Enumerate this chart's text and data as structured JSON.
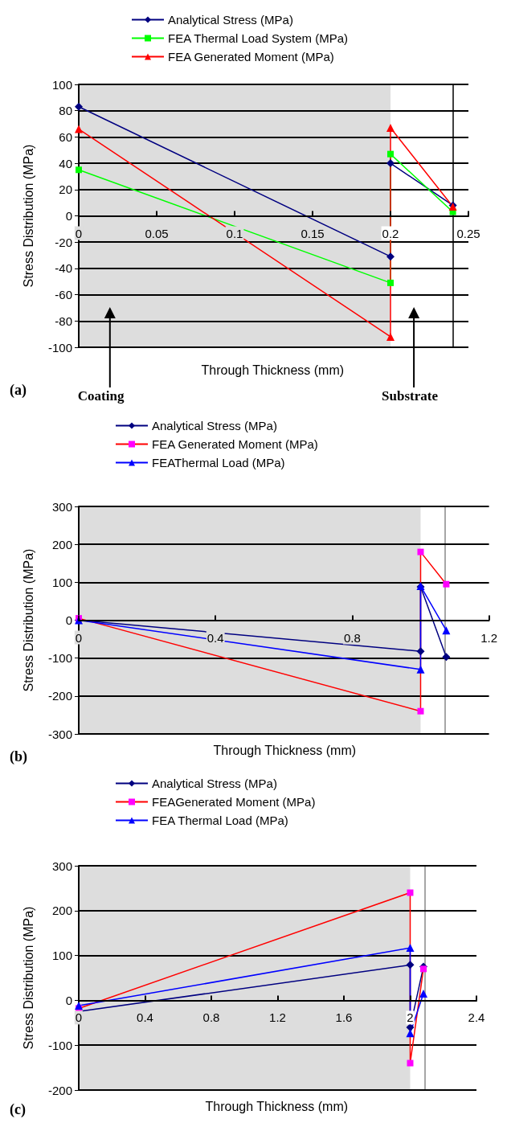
{
  "chart_data": [
    {
      "type": "line",
      "xlabel": "Through Thickness (mm)",
      "ylabel": "Stress Distribution (MPa)",
      "xlim": [
        0,
        0.25
      ],
      "xticks": [
        0,
        0.05,
        0.1,
        0.15,
        0.2,
        0.25
      ],
      "ylim": [
        -100,
        100
      ],
      "yticks": [
        -100,
        -80,
        -60,
        -40,
        -20,
        0,
        20,
        40,
        60,
        80,
        100
      ],
      "grid": "y",
      "legend": "top",
      "series": [
        {
          "name": "Analytical Stress (MPa)",
          "color": "#000080",
          "marker": "diamond",
          "x": [
            0,
            0.2,
            0.2,
            0.24
          ],
          "values": [
            83,
            -31,
            40,
            8
          ]
        },
        {
          "name": "FEA Thermal Load System (MPa)",
          "color": "#00ff00",
          "marker": "square",
          "x": [
            0,
            0.2,
            0.2,
            0.24
          ],
          "values": [
            35,
            -51,
            47,
            3
          ]
        },
        {
          "name": "FEA Generated Moment (MPa)",
          "color": "#ff0000",
          "marker": "triangle",
          "x": [
            0,
            0.2,
            0.2,
            0.24
          ],
          "values": [
            66,
            -92,
            67,
            7
          ]
        }
      ],
      "bands": [
        {
          "axis": "x",
          "from": 0,
          "to": 0.2,
          "color": "#dddddd"
        }
      ],
      "ref_lines": [
        {
          "axis": "x",
          "value": 0.24,
          "color": "#000000"
        }
      ],
      "annotations": [
        "(a)",
        "Coating",
        "Substrate"
      ]
    },
    {
      "type": "line",
      "xlabel": "Through Thickness (mm)",
      "ylabel": "Stress Distribution (MPa)",
      "xlim": [
        0,
        1.2
      ],
      "xticks": [
        0,
        0.4,
        0.8,
        1.2
      ],
      "ylim": [
        -300,
        300
      ],
      "yticks": [
        -300,
        -200,
        -100,
        0,
        100,
        200,
        300
      ],
      "grid": "y",
      "legend": "top",
      "series": [
        {
          "name": "Analytical Stress (MPa)",
          "color": "#000080",
          "marker": "diamond",
          "x": [
            0,
            1.0,
            1.0,
            1.075
          ],
          "values": [
            0,
            -82,
            88,
            -97
          ]
        },
        {
          "name": "FEA Generated Moment (MPa)",
          "color": "#ff0000",
          "colors": [
            "#ff00ff",
            "#ff00ff",
            "#ff00ff",
            "#ff00ff"
          ],
          "marker": "square",
          "x": [
            0,
            1.0,
            1.0,
            1.075
          ],
          "values": [
            5,
            -240,
            180,
            95
          ]
        },
        {
          "name": "FEAThermal Load (MPa)",
          "color": "#0000ff",
          "marker": "triangle",
          "x": [
            0,
            1.0,
            1.0,
            1.075
          ],
          "values": [
            0,
            -130,
            90,
            -27
          ]
        }
      ],
      "bands": [
        {
          "axis": "x",
          "from": 0,
          "to": 1.0,
          "color": "#dddddd"
        }
      ],
      "ref_lines": [
        {
          "axis": "x",
          "value": 1.07,
          "color": "#888888"
        }
      ],
      "annotations": [
        "(b)"
      ]
    },
    {
      "type": "line",
      "xlabel": "Through Thickness (mm)",
      "ylabel": "Stress Distribution (MPa)",
      "xlim": [
        0,
        2.4
      ],
      "xticks": [
        0,
        0.4,
        0.8,
        1.2,
        1.6,
        2,
        2.4
      ],
      "ylim": [
        -200,
        300
      ],
      "yticks": [
        -200,
        -100,
        0,
        100,
        200,
        300
      ],
      "grid": "y",
      "legend": "top",
      "series": [
        {
          "name": "Analytical Stress (MPa)",
          "color": "#000080",
          "marker": "diamond",
          "x": [
            0,
            2.0,
            2.0,
            2.08
          ],
          "values": [
            -25,
            79,
            -60,
            75
          ]
        },
        {
          "name": "FEAGenerated Moment (MPa)",
          "color": "#ff0000",
          "colors": [
            "#ff00ff",
            "#ff00ff",
            "#ff00ff",
            "#ff00ff"
          ],
          "marker": "square",
          "x": [
            0,
            2.0,
            2.0,
            2.08
          ],
          "values": [
            -18,
            240,
            -140,
            70
          ]
        },
        {
          "name": "FEA Thermal Load (MPa)",
          "color": "#0000ff",
          "marker": "triangle",
          "x": [
            0,
            2.0,
            2.0,
            2.08
          ],
          "values": [
            -12,
            117,
            -73,
            15
          ]
        }
      ],
      "bands": [
        {
          "axis": "x",
          "from": 0,
          "to": 2.0,
          "color": "#dddddd"
        }
      ],
      "ref_lines": [
        {
          "axis": "x",
          "value": 2.09,
          "color": "#888888"
        }
      ],
      "annotations": [
        "(c)"
      ]
    }
  ]
}
